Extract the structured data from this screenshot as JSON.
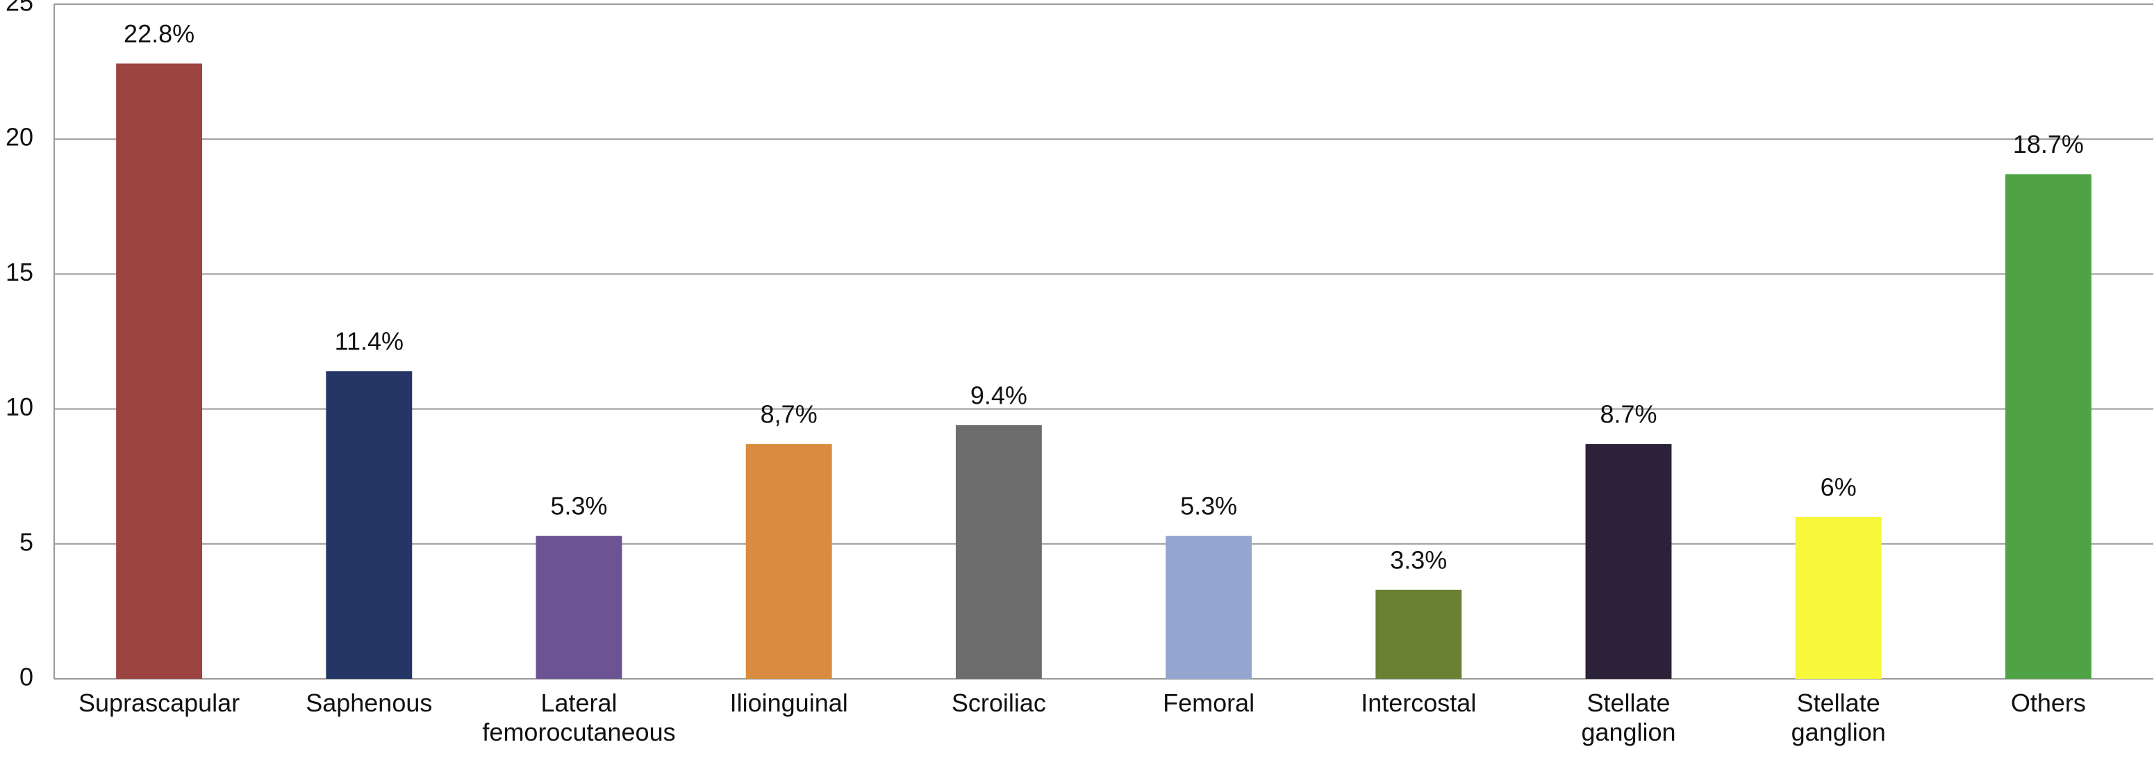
{
  "chart_data": {
    "type": "bar",
    "categories": [
      "Suprascapular",
      "Saphenous",
      "Lateral femorocutaneous",
      "Ilioinguinal",
      "Scroiliac",
      "Femoral",
      "Intercostal",
      "Stellate ganglion",
      "Stellate ganglion",
      "Others"
    ],
    "values": [
      22.8,
      11.4,
      5.3,
      8.7,
      9.4,
      5.3,
      3.3,
      8.7,
      6,
      18.7
    ],
    "value_labels": [
      "22.8%",
      "11.4%",
      "5.3%",
      "8,7%",
      "9.4%",
      "5.3%",
      "3.3%",
      "8.7%",
      "6%",
      "18.7%"
    ],
    "colors": [
      "#9b4440",
      "#253566",
      "#6b5394",
      "#d98b3f",
      "#6d6d6d",
      "#93a6d0",
      "#6a8032",
      "#2b2139",
      "#f8f83a",
      "#4fa345"
    ],
    "ylim": [
      0,
      25
    ],
    "yticks": [
      0,
      5,
      10,
      15,
      20,
      25
    ],
    "grid": true
  }
}
